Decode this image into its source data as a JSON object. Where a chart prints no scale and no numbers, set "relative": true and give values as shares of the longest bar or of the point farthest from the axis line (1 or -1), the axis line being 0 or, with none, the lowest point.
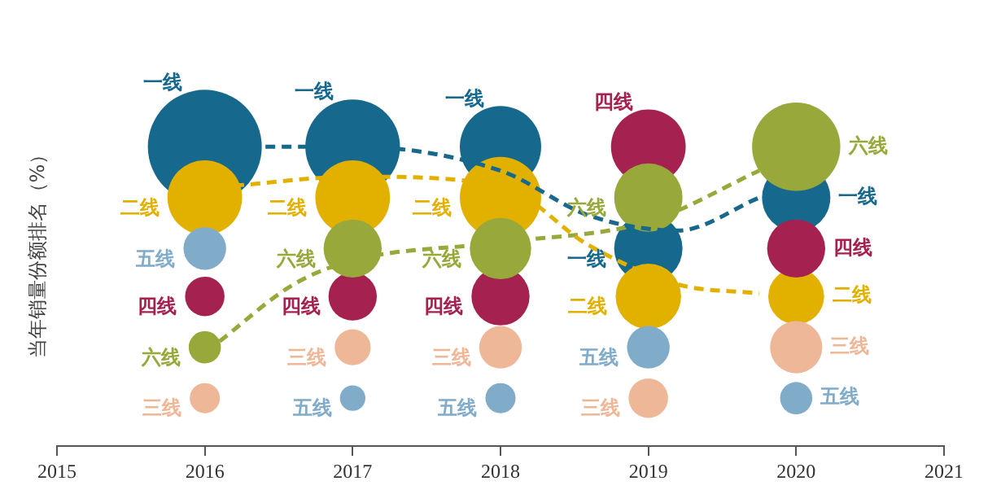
{
  "chart_data": {
    "type": "bubble",
    "ylabel": "当年销量份额排名（%）",
    "relative": true,
    "xlim": [
      2015,
      2021
    ],
    "xticks": [
      2015,
      2016,
      2017,
      2018,
      2019,
      2020,
      2021
    ],
    "grid": false,
    "legend": false,
    "x": [
      2016,
      2017,
      2018,
      2019,
      2020
    ],
    "series": [
      {
        "name": "一线",
        "color": "#16698c",
        "values": [
          1,
          1,
          1,
          0.66,
          0.83
        ],
        "sizes": [
          1,
          0.69,
          0.51,
          0.36,
          0.36
        ]
      },
      {
        "name": "二线",
        "color": "#e2b100",
        "values": [
          0.83,
          0.83,
          0.83,
          0.5,
          0.5
        ],
        "sizes": [
          0.43,
          0.43,
          0.51,
          0.33,
          0.24
        ]
      },
      {
        "name": "三线",
        "color": "#eeb898",
        "values": [
          0.16,
          0.33,
          0.33,
          0.16,
          0.33
        ],
        "sizes": [
          0.07,
          0.1,
          0.14,
          0.12,
          0.21
        ]
      },
      {
        "name": "四线",
        "color": "#a52150",
        "values": [
          0.5,
          0.5,
          0.5,
          1,
          0.66
        ],
        "sizes": [
          0.12,
          0.18,
          0.26,
          0.43,
          0.26
        ]
      },
      {
        "name": "五线",
        "color": "#80acc9",
        "values": [
          0.66,
          0.16,
          0.16,
          0.33,
          0.16
        ],
        "sizes": [
          0.14,
          0.05,
          0.07,
          0.14,
          0.08
        ]
      },
      {
        "name": "六线",
        "color": "#98a83a",
        "values": [
          0.33,
          0.66,
          0.66,
          0.83,
          1
        ],
        "sizes": [
          0.08,
          0.26,
          0.29,
          0.36,
          0.6
        ]
      },
      {
        "type": "line",
        "color": "#16698c",
        "line_style": "dashed",
        "marker": "none",
        "x": [
          2016.3,
          2017,
          2018,
          2018.6,
          2019.2,
          2019.75
        ],
        "values": [
          1,
          1,
          0.92,
          0.77,
          0.72,
          0.83
        ]
      },
      {
        "type": "line",
        "color": "#e2b100",
        "line_style": "dashed",
        "marker": "none",
        "x": [
          2016.2,
          2017,
          2018,
          2018.6,
          2019.2,
          2019.75
        ],
        "values": [
          0.87,
          0.9,
          0.87,
          0.67,
          0.54,
          0.51
        ]
      },
      {
        "type": "line",
        "color": "#98a83a",
        "line_style": "dashed",
        "marker": "none",
        "x": [
          2016.1,
          2016.6,
          2017,
          2018,
          2019,
          2019.75
        ],
        "values": [
          0.35,
          0.54,
          0.62,
          0.68,
          0.75,
          0.92
        ]
      }
    ]
  }
}
